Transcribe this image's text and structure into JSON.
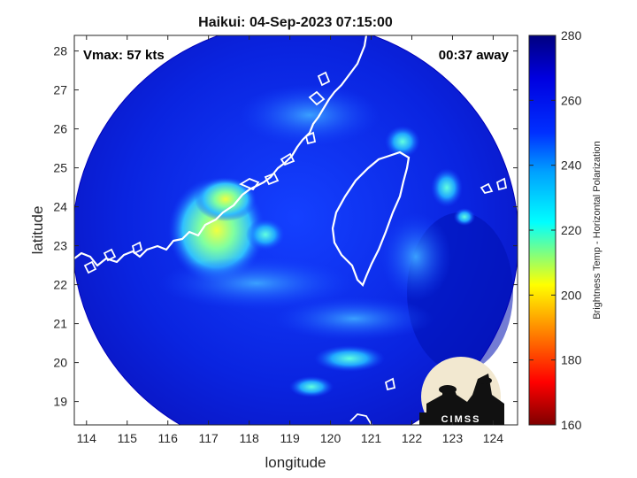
{
  "title": "Haikui: 04-Sep-2023 07:15:00",
  "overlay": {
    "vmax": "Vmax: 57 kts",
    "time_away": "00:37 away"
  },
  "axes": {
    "xlabel": "longitude",
    "ylabel": "latitude",
    "x_ticks": [
      "114",
      "115",
      "116",
      "117",
      "118",
      "119",
      "120",
      "121",
      "122",
      "123",
      "124"
    ],
    "y_ticks": [
      "28",
      "27",
      "26",
      "25",
      "24",
      "23",
      "22",
      "21",
      "20",
      "19"
    ],
    "xlim": [
      113.7,
      124.6
    ],
    "ylim": [
      18.4,
      28.4
    ]
  },
  "colorbar": {
    "label": "Brightness Temp - Horizontal Polarization",
    "ticks": [
      "280",
      "260",
      "240",
      "220",
      "200",
      "180",
      "160"
    ],
    "range": [
      160,
      280
    ],
    "colormap": "jet"
  },
  "logo": {
    "text": "CIMSS"
  },
  "colors": {
    "background": "#0a1fd6",
    "swath_edge": "#0000b8",
    "coastline": "#ffffff"
  }
}
